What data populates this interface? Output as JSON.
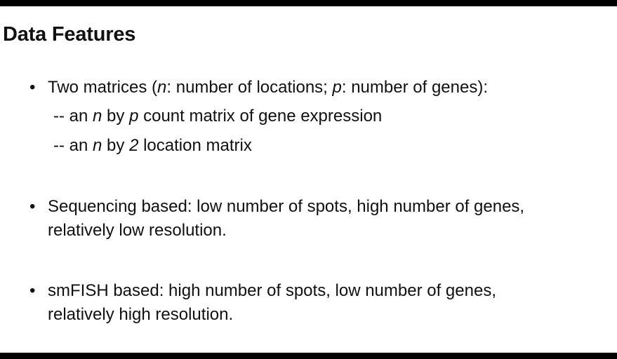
{
  "slide": {
    "title": "Data Features",
    "bullet_1": {
      "marker": "•",
      "t1": "Two matrices (",
      "t2": "n",
      "t3": ": number of locations; ",
      "t4": "p",
      "t5": ": number of genes):"
    },
    "sub_1": {
      "t1": "-- an ",
      "t2": "n",
      "t3": " by ",
      "t4": "p",
      "t5": " count matrix of gene expression"
    },
    "sub_2": {
      "t1": "-- an ",
      "t2": "n",
      "t3": " by ",
      "t4": "2",
      "t5": " location matrix"
    },
    "bullet_2": {
      "marker": "•",
      "line1": "Sequencing based: low number of spots, high number of genes,",
      "line2": "relatively low resolution."
    },
    "bullet_3": {
      "marker": "•",
      "line1": "smFISH based: high number of spots, low number of genes,",
      "line2": "relatively high resolution."
    }
  }
}
